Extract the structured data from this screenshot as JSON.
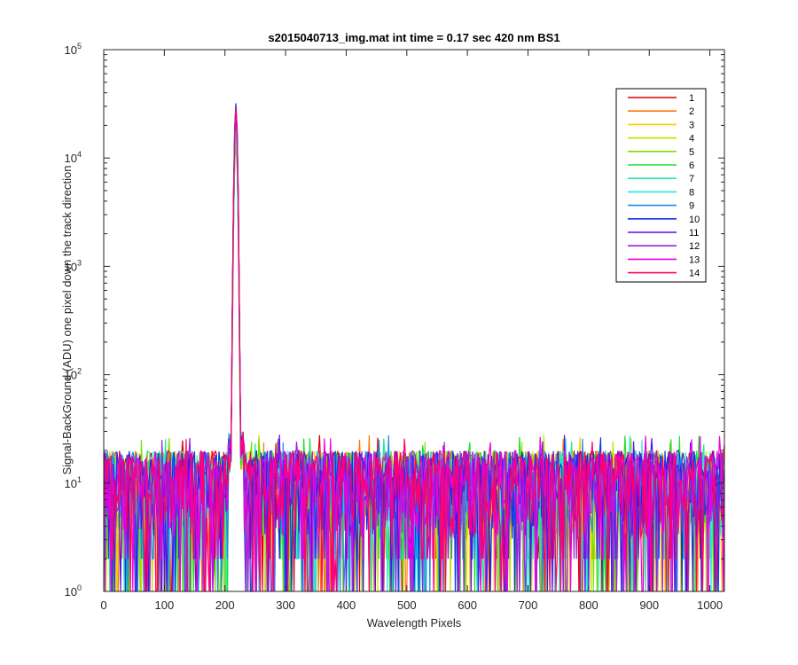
{
  "chart_data": {
    "type": "line",
    "title": "s2015040713_img.mat int time = 0.17 sec  420 nm BS1",
    "xlabel": "Wavelength Pixels",
    "ylabel": "Signal-BackGround (ADU) one pixel down the track direction",
    "xlim": [
      0,
      1024
    ],
    "ylim": [
      1,
      100000
    ],
    "yscale": "log",
    "grid": false,
    "legend_position": "top-right",
    "x_ticks": [
      "0",
      "100",
      "200",
      "300",
      "400",
      "500",
      "600",
      "700",
      "800",
      "900",
      "1000"
    ],
    "x_tick_values": [
      0,
      100,
      200,
      300,
      400,
      500,
      600,
      700,
      800,
      900,
      1000
    ],
    "y_ticks": [
      {
        "value": 1,
        "base": "10",
        "exp": "0"
      },
      {
        "value": 10,
        "base": "10",
        "exp": "1"
      },
      {
        "value": 100,
        "base": "10",
        "exp": "2"
      },
      {
        "value": 1000,
        "base": "10",
        "exp": "3"
      },
      {
        "value": 10000,
        "base": "10",
        "exp": "4"
      },
      {
        "value": 100000,
        "base": "10",
        "exp": "5"
      }
    ],
    "noise_range": [
      2,
      20
    ],
    "peak": {
      "x": 218,
      "y": 30000
    },
    "series": [
      {
        "name": "1",
        "color": "#dd0000",
        "peak": 26000
      },
      {
        "name": "2",
        "color": "#ff7700",
        "peak": 22000
      },
      {
        "name": "3",
        "color": "#ffcc00",
        "peak": 18000
      },
      {
        "name": "4",
        "color": "#c8e000",
        "peak": 16000
      },
      {
        "name": "5",
        "color": "#7ee000",
        "peak": 15000
      },
      {
        "name": "6",
        "color": "#22dd33",
        "peak": 14000
      },
      {
        "name": "7",
        "color": "#22e6a0",
        "peak": 16000
      },
      {
        "name": "8",
        "color": "#22e6e6",
        "peak": 20000
      },
      {
        "name": "9",
        "color": "#1e88e8",
        "peak": 24000
      },
      {
        "name": "10",
        "color": "#1133dd",
        "peak": 32000
      },
      {
        "name": "11",
        "color": "#5511ee",
        "peak": 30000
      },
      {
        "name": "12",
        "color": "#9922dd",
        "peak": 28000
      },
      {
        "name": "13",
        "color": "#ee00dd",
        "peak": 27000
      },
      {
        "name": "14",
        "color": "#ff0066",
        "peak": 29000
      }
    ]
  }
}
